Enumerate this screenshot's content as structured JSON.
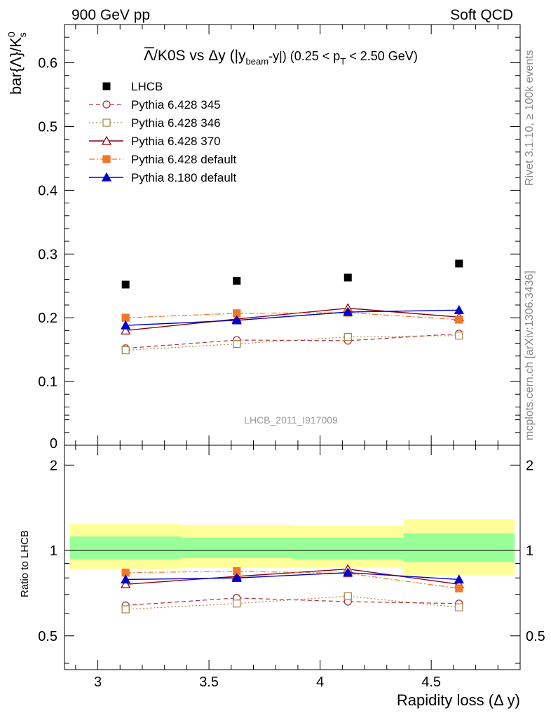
{
  "header": {
    "left": "900 GeV pp",
    "right": "Soft QCD"
  },
  "side_text": {
    "rivet": "Rivet 3.1.10, ≥ 100k events",
    "mcplots": "mcplots.cern.ch [arXiv:1306.3436]"
  },
  "watermark": "LHCB_2011_I917009",
  "title": {
    "lambdabar": "Λ",
    "main": "/K0S vs Δy (|y",
    "beam_sub": "beam",
    "mid": "-y|) (0.25 < p",
    "t_sub": "T",
    "end": " < 2.50 GeV)"
  },
  "colors": {
    "lhcb": "#000000",
    "p345": "#b03040",
    "p346": "#a88a48",
    "p370": "#8b0016",
    "pdefault": "#f07828",
    "p8default": "#0000cc",
    "band_outer": "#ffff99",
    "band_inner": "#99ff99"
  },
  "chart_data": [
    {
      "type": "scatter",
      "panel": "main",
      "ylabel_main": "bar{Λ}/K",
      "ylabel_sup": "0",
      "ylabel_sub": "s",
      "xlim": [
        2.85,
        4.9
      ],
      "ylim": [
        0.0,
        0.66
      ],
      "yticks": [
        0.1,
        0.2,
        0.3,
        0.4,
        0.5,
        0.6
      ],
      "ytick_labels": [
        "0.1",
        "0.2",
        "0.3",
        "0.4",
        "0.5",
        "0.6"
      ],
      "ybottom_label": "0",
      "x": [
        3.125,
        3.625,
        4.125,
        4.625
      ],
      "series": [
        {
          "name": "LHCB",
          "key": "lhcb",
          "style": "data",
          "values": [
            0.252,
            0.258,
            0.263,
            0.285
          ]
        },
        {
          "name": "Pythia 6.428 345",
          "key": "p345",
          "style": "open-circle-dashed",
          "values": [
            0.152,
            0.165,
            0.164,
            0.175
          ]
        },
        {
          "name": "Pythia 6.428 346",
          "key": "p346",
          "style": "open-square-dotted",
          "values": [
            0.149,
            0.159,
            0.17,
            0.172
          ]
        },
        {
          "name": "Pythia 6.428 370",
          "key": "p370",
          "style": "open-triangle-solid",
          "values": [
            0.18,
            0.198,
            0.215,
            0.201
          ]
        },
        {
          "name": "Pythia 6.428 default",
          "key": "pdefault",
          "style": "filled-square-dashdot",
          "values": [
            0.2,
            0.207,
            0.208,
            0.197
          ]
        },
        {
          "name": "Pythia 8.180 default",
          "key": "p8default",
          "style": "filled-triangle-solid",
          "values": [
            0.188,
            0.196,
            0.209,
            0.212
          ]
        }
      ]
    },
    {
      "type": "scatter",
      "panel": "ratio",
      "ylabel": "Ratio to LHCB",
      "xlabel": "Rapidity loss (Δ y)",
      "xlim": [
        2.85,
        4.9
      ],
      "ylim": [
        0.38,
        2.35
      ],
      "yticks": [
        0.5,
        1,
        2
      ],
      "ytick_labels": [
        "0.5",
        "1",
        "2"
      ],
      "xticks": [
        3.0,
        3.5,
        4.0,
        4.5
      ],
      "xtick_labels": [
        "3",
        "3.5",
        "4",
        "4.5"
      ],
      "x": [
        3.125,
        3.625,
        4.125,
        4.625
      ],
      "bins": [
        [
          2.875,
          3.375
        ],
        [
          3.375,
          3.875
        ],
        [
          3.875,
          4.375
        ],
        [
          4.375,
          4.875
        ]
      ],
      "band_inner": [
        [
          0.93,
          1.12
        ],
        [
          0.94,
          1.11
        ],
        [
          0.93,
          1.11
        ],
        [
          0.91,
          1.15
        ]
      ],
      "band_outer": [
        [
          0.86,
          1.24
        ],
        [
          0.87,
          1.23
        ],
        [
          0.87,
          1.22
        ],
        [
          0.82,
          1.29
        ]
      ],
      "series": [
        {
          "name": "Pythia 6.428 345",
          "key": "p345",
          "style": "open-circle-dashed",
          "values": [
            0.64,
            0.68,
            0.66,
            0.65
          ]
        },
        {
          "name": "Pythia 6.428 346",
          "key": "p346",
          "style": "open-square-dotted",
          "values": [
            0.62,
            0.65,
            0.69,
            0.63
          ]
        },
        {
          "name": "Pythia 6.428 370",
          "key": "p370",
          "style": "open-triangle-solid",
          "values": [
            0.76,
            0.81,
            0.86,
            0.76
          ]
        },
        {
          "name": "Pythia 6.428 default",
          "key": "pdefault",
          "style": "filled-square-dashdot",
          "values": [
            0.835,
            0.845,
            0.83,
            0.735
          ]
        },
        {
          "name": "Pythia 8.180 default",
          "key": "p8default",
          "style": "filled-triangle-solid",
          "values": [
            0.79,
            0.8,
            0.835,
            0.79
          ]
        }
      ]
    }
  ]
}
